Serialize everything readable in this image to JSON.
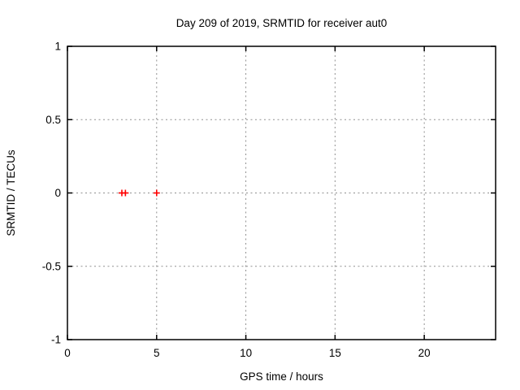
{
  "title": "Day 209 of 2019, SRMTID for receiver aut0",
  "chart_data": {
    "type": "scatter",
    "title": "Day 209 of 2019, SRMTID for receiver aut0",
    "xlabel": "GPS time / hours",
    "ylabel": "SRMTID / TECUs",
    "xlim": [
      0,
      24
    ],
    "ylim": [
      -1,
      1
    ],
    "xticks": [
      0,
      5,
      10,
      15,
      20
    ],
    "xtick_labels": [
      "0",
      "5",
      "10",
      "15",
      "20"
    ],
    "yticks": [
      -1,
      -0.5,
      0,
      0.5,
      1
    ],
    "ytick_labels": [
      "-1",
      "-0.5",
      "0",
      "0.5",
      "1"
    ],
    "grid": true,
    "grid_style": "dotted",
    "legend": "none",
    "series": [
      {
        "name": "SRMTID",
        "marker": "plus",
        "color": "#ff0000",
        "points": [
          {
            "x": 3.05,
            "y": 0.0
          },
          {
            "x": 3.25,
            "y": 0.0
          },
          {
            "x": 5.0,
            "y": 0.0
          }
        ]
      }
    ],
    "colors": {
      "background": "#ffffff",
      "axis": "#000000",
      "grid": "#909090",
      "text": "#000000",
      "marker": "#ff0000"
    }
  }
}
